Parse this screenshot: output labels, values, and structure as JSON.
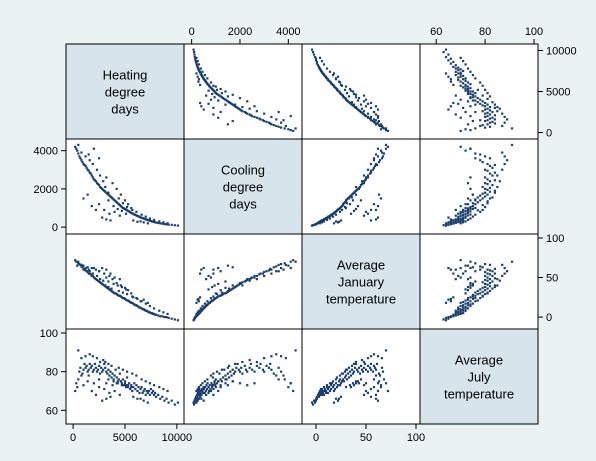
{
  "chart_data": {
    "type": "scatter-matrix",
    "variables": [
      {
        "id": "hdd",
        "label_lines": [
          "Heating",
          "degree",
          "days"
        ],
        "range": [
          -300,
          10300
        ],
        "ticks": [
          0,
          5000,
          10000
        ],
        "tick_labels": [
          "0",
          "5000",
          "10000"
        ]
      },
      {
        "id": "cdd",
        "label_lines": [
          "Cooling",
          "degree",
          "days"
        ],
        "range": [
          -150,
          4400
        ],
        "ticks": [
          0,
          2000,
          4000
        ],
        "tick_labels": [
          "0",
          "2000",
          "4000"
        ]
      },
      {
        "id": "jan",
        "label_lines": [
          "Average",
          "January",
          "temperature"
        ],
        "range": [
          -10,
          100
        ],
        "ticks": [
          0,
          50,
          100
        ],
        "tick_labels": [
          "0",
          "50",
          "100"
        ]
      },
      {
        "id": "jul",
        "label_lines": [
          "Average",
          "July",
          "temperature"
        ],
        "range": [
          55,
          100
        ],
        "ticks": [
          60,
          80,
          100
        ],
        "tick_labels": [
          "60",
          "80",
          "100"
        ]
      }
    ],
    "axis_placement": {
      "top": [
        1,
        3
      ],
      "right": [
        0,
        2
      ],
      "left": [
        1,
        3
      ],
      "bottom": [
        0,
        2
      ]
    },
    "points": [
      [
        200,
        4200,
        72,
        70
      ],
      [
        300,
        4100,
        70,
        74
      ],
      [
        400,
        4000,
        65,
        72
      ],
      [
        500,
        3850,
        68,
        76
      ],
      [
        600,
        3700,
        67,
        80
      ],
      [
        700,
        3600,
        66,
        82
      ],
      [
        800,
        3500,
        64,
        78
      ],
      [
        900,
        3400,
        63,
        79
      ],
      [
        1000,
        3300,
        60,
        81
      ],
      [
        1100,
        3250,
        61,
        84
      ],
      [
        1200,
        3200,
        59,
        82
      ],
      [
        1300,
        3100,
        58,
        83
      ],
      [
        1400,
        3000,
        57,
        80
      ],
      [
        1500,
        2950,
        55,
        81
      ],
      [
        1600,
        2850,
        55,
        84
      ],
      [
        1700,
        2800,
        54,
        82
      ],
      [
        1800,
        2700,
        52,
        83
      ],
      [
        1900,
        2600,
        52,
        80
      ],
      [
        2000,
        2500,
        50,
        81
      ],
      [
        2100,
        2450,
        49,
        84
      ],
      [
        2200,
        2400,
        48,
        82
      ],
      [
        2300,
        2300,
        47,
        80
      ],
      [
        2400,
        2250,
        46,
        81
      ],
      [
        2500,
        2200,
        45,
        83
      ],
      [
        2600,
        2100,
        44,
        79
      ],
      [
        2700,
        2050,
        43,
        82
      ],
      [
        2800,
        2000,
        42,
        80
      ],
      [
        2900,
        1950,
        41,
        81
      ],
      [
        3000,
        1900,
        40,
        84
      ],
      [
        3100,
        1850,
        39,
        82
      ],
      [
        3200,
        1800,
        38,
        80
      ],
      [
        3300,
        1750,
        37,
        79
      ],
      [
        3400,
        1700,
        36,
        81
      ],
      [
        3500,
        1650,
        35,
        78
      ],
      [
        3600,
        1600,
        34,
        80
      ],
      [
        3700,
        1550,
        33,
        77
      ],
      [
        3800,
        1500,
        32,
        79
      ],
      [
        3900,
        1450,
        31,
        76
      ],
      [
        4000,
        1400,
        30,
        78
      ],
      [
        4100,
        1350,
        30,
        81
      ],
      [
        4200,
        1300,
        29,
        77
      ],
      [
        4300,
        1250,
        28,
        75
      ],
      [
        4400,
        1200,
        27,
        76
      ],
      [
        4500,
        1150,
        27,
        79
      ],
      [
        4600,
        1100,
        26,
        75
      ],
      [
        4700,
        1050,
        25,
        74
      ],
      [
        4800,
        1000,
        24,
        76
      ],
      [
        4900,
        980,
        24,
        73
      ],
      [
        5000,
        950,
        23,
        75
      ],
      [
        5100,
        920,
        22,
        73
      ],
      [
        5200,
        880,
        21,
        77
      ],
      [
        5300,
        850,
        21,
        72
      ],
      [
        5400,
        820,
        20,
        74
      ],
      [
        5500,
        780,
        19,
        71
      ],
      [
        5600,
        750,
        18,
        73
      ],
      [
        5700,
        720,
        18,
        70
      ],
      [
        5800,
        700,
        17,
        72
      ],
      [
        5900,
        660,
        16,
        74
      ],
      [
        6000,
        640,
        15,
        71
      ],
      [
        6100,
        610,
        15,
        73
      ],
      [
        6200,
        590,
        14,
        70
      ],
      [
        6300,
        560,
        13,
        72
      ],
      [
        6400,
        540,
        12,
        69
      ],
      [
        6500,
        510,
        12,
        71
      ],
      [
        6600,
        490,
        11,
        72
      ],
      [
        6700,
        470,
        10,
        69
      ],
      [
        6800,
        450,
        10,
        70
      ],
      [
        6900,
        430,
        9,
        71
      ],
      [
        7000,
        410,
        8,
        68
      ],
      [
        7100,
        390,
        8,
        70
      ],
      [
        7200,
        370,
        7,
        69
      ],
      [
        7300,
        360,
        6,
        70
      ],
      [
        7400,
        340,
        6,
        68
      ],
      [
        7500,
        320,
        5,
        71
      ],
      [
        7600,
        300,
        5,
        69
      ],
      [
        7700,
        290,
        4,
        70
      ],
      [
        7800,
        270,
        4,
        68
      ],
      [
        7900,
        260,
        3,
        69
      ],
      [
        8000,
        240,
        3,
        67
      ],
      [
        8200,
        220,
        2,
        68
      ],
      [
        8400,
        200,
        1,
        66
      ],
      [
        8600,
        180,
        1,
        67
      ],
      [
        8800,
        160,
        0,
        65
      ],
      [
        9000,
        150,
        0,
        66
      ],
      [
        9200,
        130,
        -1,
        64
      ],
      [
        9500,
        120,
        -2,
        65
      ],
      [
        9800,
        100,
        -3,
        63
      ],
      [
        10100,
        80,
        -4,
        64
      ],
      [
        2000,
        4100,
        62,
        74
      ],
      [
        2500,
        3600,
        58,
        76
      ],
      [
        1500,
        3800,
        60,
        78
      ],
      [
        3200,
        2600,
        50,
        74
      ],
      [
        3800,
        2300,
        48,
        73
      ],
      [
        4200,
        2000,
        43,
        74
      ],
      [
        4600,
        1700,
        40,
        75
      ],
      [
        5000,
        1400,
        37,
        74
      ],
      [
        5300,
        1200,
        34,
        73
      ],
      [
        5600,
        1000,
        30,
        72
      ],
      [
        3000,
        900,
        55,
        71
      ],
      [
        3500,
        700,
        52,
        69
      ],
      [
        4000,
        800,
        50,
        70
      ],
      [
        4500,
        600,
        48,
        68
      ],
      [
        2500,
        1200,
        58,
        72
      ],
      [
        2800,
        500,
        62,
        65
      ],
      [
        3200,
        400,
        60,
        66
      ],
      [
        3600,
        350,
        55,
        67
      ],
      [
        1800,
        1100,
        62,
        70
      ],
      [
        2200,
        900,
        60,
        68
      ],
      [
        1000,
        1500,
        65,
        73
      ],
      [
        1400,
        1700,
        63,
        75
      ],
      [
        6500,
        300,
        20,
        66
      ],
      [
        6800,
        250,
        22,
        65
      ],
      [
        7200,
        200,
        18,
        64
      ],
      [
        5800,
        350,
        25,
        67
      ],
      [
        6200,
        280,
        23,
        66
      ],
      [
        3400,
        1400,
        45,
        76
      ],
      [
        3900,
        1100,
        42,
        75
      ],
      [
        4300,
        950,
        40,
        74
      ],
      [
        4700,
        850,
        38,
        73
      ],
      [
        5100,
        700,
        35,
        72
      ],
      [
        2600,
        2700,
        48,
        85
      ],
      [
        2900,
        2400,
        46,
        86
      ],
      [
        2300,
        3000,
        52,
        87
      ],
      [
        1900,
        3300,
        55,
        88
      ],
      [
        1600,
        3500,
        58,
        89
      ],
      [
        1200,
        3700,
        62,
        88
      ],
      [
        800,
        3900,
        66,
        87
      ],
      [
        500,
        4300,
        70,
        91
      ],
      [
        3100,
        2100,
        40,
        85
      ],
      [
        3400,
        1800,
        38,
        84
      ],
      [
        3700,
        1550,
        36,
        83
      ],
      [
        4400,
        1500,
        33,
        82
      ],
      [
        4800,
        1250,
        31,
        81
      ],
      [
        5200,
        1050,
        29,
        80
      ],
      [
        5700,
        900,
        26,
        79
      ],
      [
        6100,
        800,
        24,
        78
      ],
      [
        6600,
        650,
        20,
        76
      ],
      [
        7000,
        550,
        17,
        75
      ],
      [
        7400,
        450,
        14,
        74
      ],
      [
        7800,
        380,
        11,
        73
      ],
      [
        8300,
        300,
        8,
        72
      ],
      [
        8700,
        250,
        6,
        71
      ],
      [
        9100,
        200,
        4,
        70
      ]
    ],
    "colors": {
      "point": "#1b3f6e",
      "diag_fill": "#d7e4ec",
      "bg": "#eaf2f3",
      "panel": "#ffffff"
    }
  }
}
